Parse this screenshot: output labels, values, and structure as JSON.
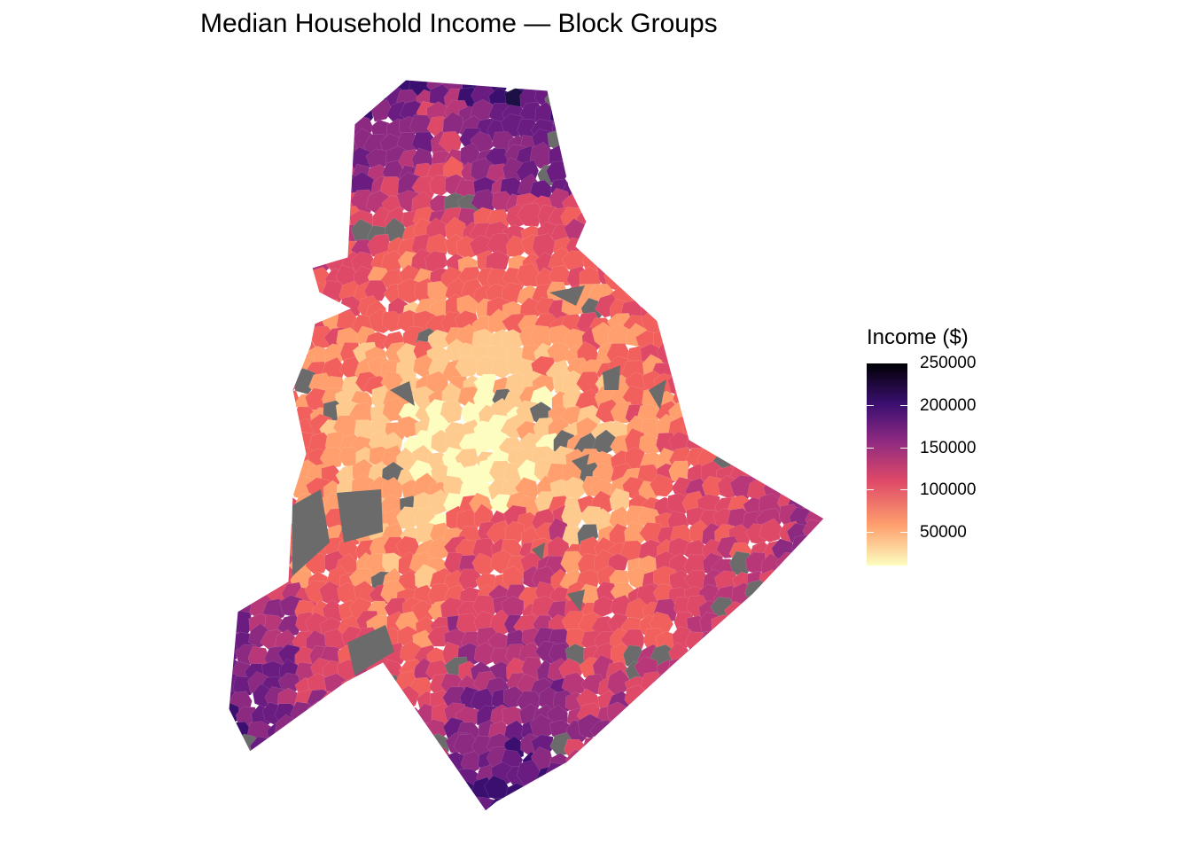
{
  "title": "Median Household Income — Block Groups",
  "legend": {
    "title": "Income ($)",
    "labels": [
      "250000",
      "200000",
      "150000",
      "100000",
      "50000"
    ],
    "min_color": "#fcfdbf",
    "max_color": "#000004",
    "no_data_color": "#6b6b6b"
  },
  "palette": [
    "#fcfdbf",
    "#feca8d",
    "#fe9f6d",
    "#f1605d",
    "#de4968",
    "#b73779",
    "#8c2981",
    "#6a1c81",
    "#3b0f70",
    "#1c1044",
    "#000004"
  ]
}
